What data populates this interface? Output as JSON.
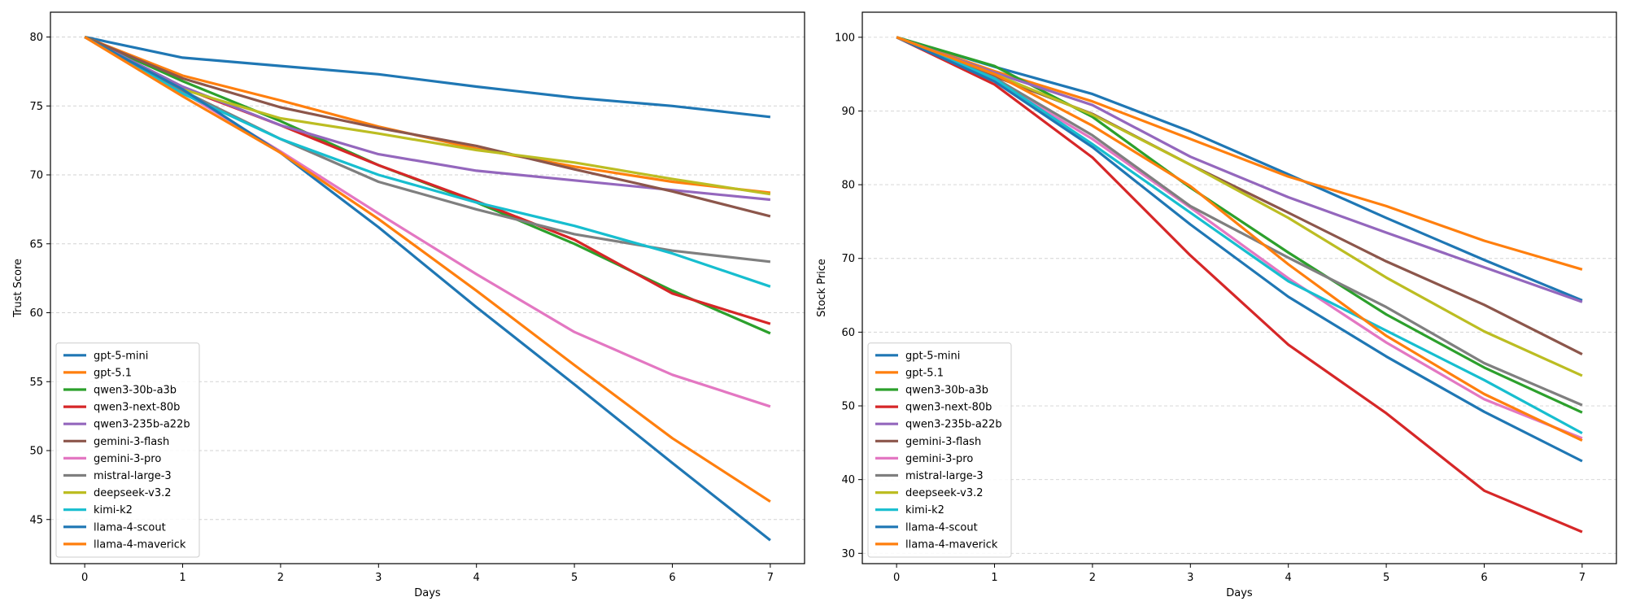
{
  "chart_data": [
    {
      "type": "line",
      "xlabel": "Days",
      "ylabel": "Trust Score",
      "x": [
        0,
        1,
        2,
        3,
        4,
        5,
        6,
        7
      ],
      "xlim": [
        -0.35,
        7.35
      ],
      "ylim": [
        41.8,
        81.8
      ],
      "yticks": [
        45,
        50,
        55,
        60,
        65,
        70,
        75,
        80
      ],
      "grid": "y-dashed",
      "legend": "lower-left",
      "series": [
        {
          "name": "gpt-5-mini",
          "color": "#1f77b4",
          "values": [
            80,
            78.5,
            77.9,
            77.3,
            76.4,
            75.6,
            75.0,
            74.2
          ]
        },
        {
          "name": "gpt-5.1",
          "color": "#ff7f0e",
          "values": [
            80,
            77.2,
            75.4,
            73.5,
            71.9,
            70.6,
            69.5,
            68.7
          ]
        },
        {
          "name": "qwen3-30b-a3b",
          "color": "#2ca02c",
          "values": [
            80,
            76.8,
            73.9,
            70.7,
            68.0,
            65.0,
            61.6,
            58.5
          ]
        },
        {
          "name": "qwen3-next-80b",
          "color": "#d62728",
          "values": [
            80,
            76.3,
            73.6,
            70.7,
            68.1,
            65.3,
            61.4,
            59.2
          ]
        },
        {
          "name": "qwen3-235b-a22b",
          "color": "#9467bd",
          "values": [
            80,
            76.4,
            73.6,
            71.5,
            70.3,
            69.6,
            68.9,
            68.2
          ]
        },
        {
          "name": "gemini-3-flash",
          "color": "#8c564b",
          "values": [
            80,
            77.0,
            74.9,
            73.4,
            72.1,
            70.4,
            68.8,
            67.0
          ]
        },
        {
          "name": "gemini-3-pro",
          "color": "#e377c2",
          "values": [
            80,
            76.0,
            71.7,
            67.2,
            62.8,
            58.6,
            55.5,
            53.2
          ]
        },
        {
          "name": "mistral-large-3",
          "color": "#7f7f7f",
          "values": [
            80,
            76.1,
            72.6,
            69.5,
            67.5,
            65.7,
            64.5,
            63.7
          ]
        },
        {
          "name": "deepseek-v3.2",
          "color": "#bcbd22",
          "values": [
            80,
            76.2,
            74.1,
            73.0,
            71.8,
            70.9,
            69.7,
            68.6
          ]
        },
        {
          "name": "kimi-k2",
          "color": "#17becf",
          "values": [
            80,
            75.9,
            72.6,
            70.0,
            68.0,
            66.3,
            64.3,
            61.9
          ]
        },
        {
          "name": "llama-4-scout",
          "color": "#1f77b4",
          "values": [
            80,
            76.2,
            71.6,
            66.2,
            60.4,
            54.8,
            49.1,
            43.5
          ]
        },
        {
          "name": "llama-4-maverick",
          "color": "#ff7f0e",
          "values": [
            80,
            75.7,
            71.6,
            66.8,
            61.6,
            56.2,
            50.9,
            46.3
          ]
        }
      ]
    },
    {
      "type": "line",
      "xlabel": "Days",
      "ylabel": "Stock Price",
      "x": [
        0,
        1,
        2,
        3,
        4,
        5,
        6,
        7
      ],
      "xlim": [
        -0.35,
        7.35
      ],
      "ylim": [
        28.6,
        103.4
      ],
      "yticks": [
        30,
        40,
        50,
        60,
        70,
        80,
        90,
        100
      ],
      "grid": "y-dashed",
      "legend": "lower-left",
      "series": [
        {
          "name": "gpt-5-mini",
          "color": "#1f77b4",
          "values": [
            100,
            96.0,
            92.3,
            87.2,
            81.4,
            75.5,
            69.8,
            64.3
          ]
        },
        {
          "name": "gpt-5.1",
          "color": "#ff7f0e",
          "values": [
            100,
            95.4,
            91.3,
            86.2,
            81.1,
            77.1,
            72.4,
            68.5
          ]
        },
        {
          "name": "qwen3-30b-a3b",
          "color": "#2ca02c",
          "values": [
            100,
            96.1,
            89.2,
            79.6,
            70.8,
            62.4,
            55.2,
            49.1
          ]
        },
        {
          "name": "qwen3-next-80b",
          "color": "#d62728",
          "values": [
            100,
            93.6,
            83.7,
            70.4,
            58.3,
            49.0,
            38.5,
            32.9
          ]
        },
        {
          "name": "qwen3-235b-a22b",
          "color": "#9467bd",
          "values": [
            100,
            95.2,
            90.8,
            83.8,
            78.3,
            73.5,
            68.8,
            64.1
          ]
        },
        {
          "name": "gemini-3-flash",
          "color": "#8c564b",
          "values": [
            100,
            94.7,
            89.6,
            82.7,
            76.2,
            69.6,
            63.7,
            57.0
          ]
        },
        {
          "name": "gemini-3-pro",
          "color": "#e377c2",
          "values": [
            100,
            94.2,
            86.2,
            76.9,
            67.3,
            58.6,
            50.9,
            45.6
          ]
        },
        {
          "name": "mistral-large-3",
          "color": "#7f7f7f",
          "values": [
            100,
            94.5,
            86.7,
            77.1,
            70.1,
            63.4,
            55.8,
            50.1
          ]
        },
        {
          "name": "deepseek-v3.2",
          "color": "#bcbd22",
          "values": [
            100,
            95.0,
            89.5,
            82.7,
            75.5,
            67.4,
            60.1,
            54.1
          ]
        },
        {
          "name": "kimi-k2",
          "color": "#17becf",
          "values": [
            100,
            94.4,
            85.5,
            76.2,
            66.9,
            60.2,
            53.5,
            46.3
          ]
        },
        {
          "name": "llama-4-scout",
          "color": "#1f77b4",
          "values": [
            100,
            94.0,
            85.1,
            74.6,
            64.8,
            56.7,
            49.2,
            42.5
          ]
        },
        {
          "name": "llama-4-maverick",
          "color": "#ff7f0e",
          "values": [
            100,
            95.0,
            88.0,
            79.8,
            69.2,
            59.5,
            51.6,
            45.3
          ]
        }
      ]
    }
  ]
}
